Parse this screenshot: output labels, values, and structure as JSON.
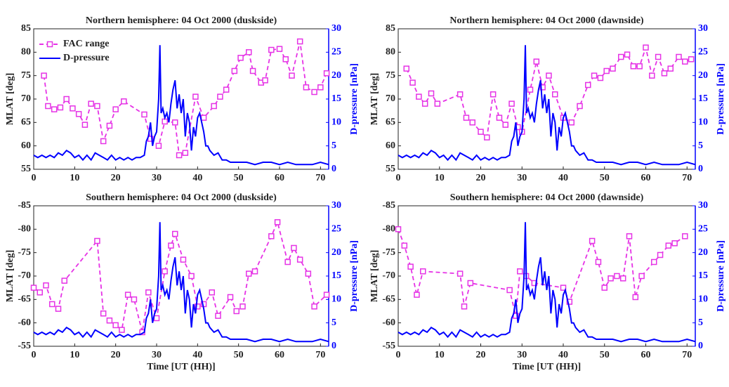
{
  "chart_data": [
    {
      "type": "line",
      "title": "Northern hemisphere: 04 Oct 2000 (duskside)",
      "ylabel": "MLAT [deg]",
      "y2label": "D-pressure [nPa]",
      "xlim": [
        0,
        72
      ],
      "xticks": [
        0,
        10,
        20,
        30,
        40,
        50,
        60,
        70
      ],
      "ylim": [
        55,
        85
      ],
      "yticks": [
        55,
        60,
        65,
        70,
        75,
        80,
        85
      ],
      "y2lim": [
        0,
        30
      ],
      "y2ticks": [
        0,
        5,
        10,
        15,
        20,
        25,
        30
      ],
      "legend": "upper left",
      "series": [
        {
          "name": "FAC range",
          "color": "#e633e6",
          "linestyle": "dashed",
          "marker": "square",
          "x": [
            2.5,
            3.5,
            5,
            6.5,
            8,
            9.5,
            11,
            12.5,
            14,
            15.5,
            17,
            18.5,
            20,
            22,
            27,
            28.5,
            30.5,
            32,
            34.5,
            35.5,
            37,
            39.5,
            41.5,
            44,
            45.5,
            47,
            49,
            50.5,
            52.5,
            53.5,
            55.5,
            56.5,
            58,
            60,
            61.5,
            63,
            65,
            66.5,
            68.5,
            70,
            71.5
          ],
          "values": [
            75,
            68.5,
            67.8,
            68.2,
            70,
            68,
            66.8,
            64.5,
            69,
            68.5,
            61,
            64.3,
            67.8,
            69.5,
            66.7,
            61.5,
            60,
            65.2,
            65,
            58,
            58.5,
            70.5,
            66,
            68.5,
            70.5,
            72,
            76,
            78.8,
            80,
            76,
            73.5,
            74,
            80.5,
            80.7,
            78.5,
            75,
            82.3,
            72.5,
            71.5,
            72.5,
            75.5
          ]
        },
        {
          "name": "D-pressure",
          "color": "#0000ff",
          "linestyle": "solid",
          "axis": "y2",
          "x": [
            0,
            1,
            2,
            3,
            4,
            5,
            6,
            7,
            8,
            9,
            10,
            11,
            12,
            13,
            14,
            15,
            16,
            17,
            18,
            19,
            20,
            21,
            22,
            23,
            24,
            25,
            26,
            27,
            27.5,
            28,
            28.5,
            29,
            29.5,
            30,
            30.5,
            30.8,
            31.1,
            31.5,
            32,
            32.5,
            33,
            33.5,
            34,
            34.5,
            35,
            35.5,
            36,
            36.5,
            37,
            37.5,
            38,
            38.5,
            39,
            39.5,
            40,
            40.5,
            41,
            41.5,
            42,
            42.5,
            43,
            44,
            45,
            46,
            47,
            48,
            50,
            52,
            54,
            56,
            58,
            60,
            62,
            64,
            66,
            68,
            70,
            72
          ],
          "values": [
            3,
            2.5,
            3,
            2.5,
            3,
            2.5,
            3.5,
            3,
            4,
            3.5,
            2.5,
            3,
            2,
            3,
            2,
            3.5,
            3,
            2.5,
            2,
            3,
            2,
            2.5,
            2,
            2.5,
            2,
            2.5,
            2.5,
            3,
            6,
            7,
            10,
            5,
            7,
            8,
            15,
            26.5,
            12,
            13,
            11,
            12,
            10,
            14,
            17,
            19,
            13,
            16,
            12,
            15,
            7,
            12,
            10,
            4,
            9,
            7,
            11,
            12,
            10,
            8,
            5,
            5,
            4,
            3,
            3.5,
            2,
            2,
            1.5,
            1.5,
            1.5,
            1,
            1.5,
            1.5,
            1,
            1.5,
            1,
            1,
            1,
            1.5,
            1
          ]
        }
      ]
    },
    {
      "type": "line",
      "title": "Northern hemisphere: 04 Oct 2000 (dawnside)",
      "ylabel": "MLAT [deg]",
      "y2label": "D-pressure [nPa]",
      "xlim": [
        0,
        72
      ],
      "xticks": [
        0,
        10,
        20,
        30,
        40,
        50,
        60,
        70
      ],
      "ylim": [
        55,
        85
      ],
      "yticks": [
        55,
        60,
        65,
        70,
        75,
        80,
        85
      ],
      "y2lim": [
        0,
        30
      ],
      "y2ticks": [
        0,
        5,
        10,
        15,
        20,
        25,
        30
      ],
      "series": [
        {
          "color": "#e633e6",
          "linestyle": "dashed",
          "marker": "square",
          "x": [
            2,
            3.5,
            5,
            6.5,
            8,
            9.5,
            15,
            16.5,
            18,
            20,
            21.5,
            23,
            24.5,
            26,
            27.5,
            29,
            30,
            32,
            33.5,
            35,
            36.5,
            38,
            40,
            42,
            44,
            46,
            47.5,
            49,
            50.5,
            52,
            54,
            55.5,
            57,
            58.5,
            60,
            61.5,
            63,
            64.5,
            66,
            68,
            69.5,
            71
          ],
          "values": [
            76.5,
            73.5,
            70.5,
            69,
            71.2,
            69,
            71,
            66,
            65,
            63,
            61.8,
            71,
            66,
            64.5,
            69,
            64,
            63,
            72,
            78,
            72.5,
            75,
            71,
            66,
            65,
            68.5,
            73,
            75,
            74.5,
            76,
            76.5,
            79,
            79.5,
            77,
            77,
            81,
            75,
            79,
            75.5,
            76.5,
            79,
            78,
            78.5
          ]
        },
        {
          "color": "#0000ff",
          "linestyle": "solid",
          "axis": "y2",
          "x": [
            0,
            1,
            2,
            3,
            4,
            5,
            6,
            7,
            8,
            9,
            10,
            11,
            12,
            13,
            14,
            15,
            16,
            17,
            18,
            19,
            20,
            21,
            22,
            23,
            24,
            25,
            26,
            27,
            27.5,
            28,
            28.5,
            29,
            29.5,
            30,
            30.5,
            30.8,
            31.1,
            31.5,
            32,
            32.5,
            33,
            33.5,
            34,
            34.5,
            35,
            35.5,
            36,
            36.5,
            37,
            37.5,
            38,
            38.5,
            39,
            39.5,
            40,
            40.5,
            41,
            41.5,
            42,
            42.5,
            43,
            44,
            45,
            46,
            47,
            48,
            50,
            52,
            54,
            56,
            58,
            60,
            62,
            64,
            66,
            68,
            70,
            72
          ],
          "values": [
            3,
            2.5,
            3,
            2.5,
            3,
            2.5,
            3.5,
            3,
            4,
            3.5,
            2.5,
            3,
            2,
            3,
            2,
            3.5,
            3,
            2.5,
            2,
            3,
            2,
            2.5,
            2,
            2.5,
            2,
            2.5,
            2.5,
            3,
            6,
            7,
            10,
            5,
            7,
            8,
            15,
            26.5,
            12,
            13,
            11,
            12,
            10,
            14,
            17,
            19,
            13,
            16,
            12,
            15,
            7,
            12,
            10,
            4,
            9,
            7,
            11,
            12,
            10,
            8,
            5,
            5,
            4,
            3,
            3.5,
            2,
            2,
            1.5,
            1.5,
            1.5,
            1,
            1.5,
            1.5,
            1,
            1.5,
            1,
            1,
            1,
            1.5,
            1
          ]
        }
      ]
    },
    {
      "type": "line",
      "title": "Southern hemisphere: 04 Oct 2000 (duskside)",
      "xlabel": "Time [UT (HH)]",
      "ylabel": "MLAT [deg]",
      "y2label": "D-pressure [nPa]",
      "xlim": [
        0,
        72
      ],
      "xticks": [
        0,
        10,
        20,
        30,
        40,
        50,
        60,
        70
      ],
      "ylim": [
        -55,
        -85
      ],
      "yticks": [
        -85,
        -80,
        -75,
        -70,
        -65,
        -60,
        -55
      ],
      "y2lim": [
        0,
        30
      ],
      "y2ticks": [
        0,
        5,
        10,
        15,
        20,
        25,
        30
      ],
      "series": [
        {
          "color": "#e633e6",
          "linestyle": "dashed",
          "marker": "square",
          "x": [
            0,
            1.5,
            3,
            4.5,
            6,
            7.5,
            15.5,
            17,
            18.5,
            20,
            21.5,
            23,
            24.5,
            26.5,
            28,
            30,
            32,
            33.5,
            34.5,
            36.5,
            38.5,
            40,
            41.5,
            43.5,
            45,
            48,
            49.5,
            51,
            52.5,
            54,
            58,
            59.5,
            62,
            63.5,
            65,
            67,
            68.5,
            71.5
          ],
          "values": [
            -67.5,
            -66.5,
            -68,
            -64,
            -63,
            -69,
            -77.5,
            -62,
            -60.5,
            -59.5,
            -58.5,
            -66,
            -65,
            -58,
            -66.5,
            -61,
            -71,
            -76.5,
            -79,
            -73.5,
            -70,
            -63.5,
            -64,
            -66.5,
            -61.5,
            -65.5,
            -62.5,
            -63.5,
            -70.5,
            -71,
            -78.5,
            -81.5,
            -73,
            -76,
            -73.5,
            -70.5,
            -63.5,
            -66
          ]
        },
        {
          "color": "#0000ff",
          "linestyle": "solid",
          "axis": "y2",
          "x": [
            0,
            1,
            2,
            3,
            4,
            5,
            6,
            7,
            8,
            9,
            10,
            11,
            12,
            13,
            14,
            15,
            16,
            17,
            18,
            19,
            20,
            21,
            22,
            23,
            24,
            25,
            26,
            27,
            27.5,
            28,
            28.5,
            29,
            29.5,
            30,
            30.5,
            30.8,
            31.1,
            31.5,
            32,
            32.5,
            33,
            33.5,
            34,
            34.5,
            35,
            35.5,
            36,
            36.5,
            37,
            37.5,
            38,
            38.5,
            39,
            39.5,
            40,
            40.5,
            41,
            41.5,
            42,
            42.5,
            43,
            44,
            45,
            46,
            47,
            48,
            50,
            52,
            54,
            56,
            58,
            60,
            62,
            64,
            66,
            68,
            70,
            72
          ],
          "values": [
            3,
            2.5,
            3,
            2.5,
            3,
            2.5,
            3.5,
            3,
            4,
            3.5,
            2.5,
            3,
            2,
            3,
            2,
            3.5,
            3,
            2.5,
            2,
            3,
            2,
            2.5,
            2,
            2.5,
            2,
            2.5,
            2.5,
            3,
            6,
            7,
            10,
            5,
            7,
            8,
            15,
            26.5,
            12,
            13,
            11,
            12,
            10,
            14,
            17,
            19,
            13,
            16,
            12,
            15,
            7,
            12,
            10,
            4,
            9,
            7,
            11,
            12,
            10,
            8,
            5,
            5,
            4,
            3,
            3.5,
            2,
            2,
            1.5,
            1.5,
            1.5,
            1,
            1.5,
            1.5,
            1,
            1.5,
            1,
            1,
            1,
            1.5,
            1
          ]
        }
      ]
    },
    {
      "type": "line",
      "title": "Southern hemisphere: 04 Oct 2000 (dawnside)",
      "xlabel": "Time [UT (HH)]",
      "ylabel": "MLAT [deg]",
      "y2label": "D-pressure [nPa]",
      "xlim": [
        0,
        72
      ],
      "xticks": [
        0,
        10,
        20,
        30,
        40,
        50,
        60,
        70
      ],
      "ylim": [
        -55,
        -85
      ],
      "yticks": [
        -85,
        -80,
        -75,
        -70,
        -65,
        -60,
        -55
      ],
      "y2lim": [
        0,
        30
      ],
      "y2ticks": [
        0,
        5,
        10,
        15,
        20,
        25,
        30
      ],
      "series": [
        {
          "color": "#e633e6",
          "linestyle": "dashed",
          "marker": "square",
          "x": [
            0,
            1.5,
            3,
            4.5,
            6,
            15,
            16,
            17.5,
            27,
            28.5,
            29.5,
            31,
            33,
            40,
            41.5,
            47,
            48.5,
            50,
            51.5,
            53,
            54.5,
            56,
            57.5,
            59,
            62,
            63.5,
            65.5,
            67,
            69.5
          ],
          "values": [
            -80,
            -76.5,
            -72,
            -66,
            -71,
            -70.5,
            -63.5,
            -68.5,
            -67,
            -61.5,
            -71,
            -70,
            -68.5,
            -67.5,
            -64.5,
            -77.5,
            -73,
            -67.5,
            -69.5,
            -70,
            -69.5,
            -78.5,
            -65.5,
            -70,
            -73,
            -74.5,
            -76.5,
            -77,
            -78.5
          ]
        },
        {
          "color": "#0000ff",
          "linestyle": "solid",
          "axis": "y2",
          "x": [
            0,
            1,
            2,
            3,
            4,
            5,
            6,
            7,
            8,
            9,
            10,
            11,
            12,
            13,
            14,
            15,
            16,
            17,
            18,
            19,
            20,
            21,
            22,
            23,
            24,
            25,
            26,
            27,
            27.5,
            28,
            28.5,
            29,
            29.5,
            30,
            30.5,
            30.8,
            31.1,
            31.5,
            32,
            32.5,
            33,
            33.5,
            34,
            34.5,
            35,
            35.5,
            36,
            36.5,
            37,
            37.5,
            38,
            38.5,
            39,
            39.5,
            40,
            40.5,
            41,
            41.5,
            42,
            42.5,
            43,
            44,
            45,
            46,
            47,
            48,
            50,
            52,
            54,
            56,
            58,
            60,
            62,
            64,
            66,
            68,
            70,
            72
          ],
          "values": [
            3,
            2.5,
            3,
            2.5,
            3,
            2.5,
            3.5,
            3,
            4,
            3.5,
            2.5,
            3,
            2,
            3,
            2,
            3.5,
            3,
            2.5,
            2,
            3,
            2,
            2.5,
            2,
            2.5,
            2,
            2.5,
            2.5,
            3,
            6,
            7,
            10,
            5,
            7,
            8,
            15,
            26.5,
            12,
            13,
            11,
            12,
            10,
            14,
            17,
            19,
            13,
            16,
            12,
            15,
            7,
            12,
            10,
            4,
            9,
            7,
            11,
            12,
            10,
            8,
            5,
            5,
            4,
            3,
            3.5,
            2,
            2,
            1.5,
            1.5,
            1.5,
            1,
            1.5,
            1.5,
            1,
            1.5,
            1,
            1,
            1,
            1.5,
            1
          ]
        }
      ]
    }
  ]
}
